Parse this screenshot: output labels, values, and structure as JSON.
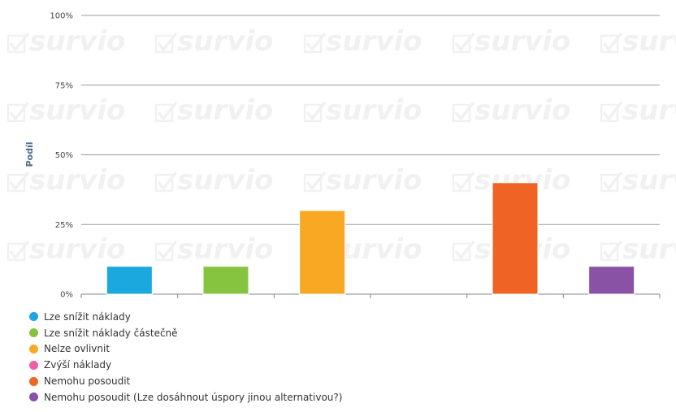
{
  "watermark": {
    "text": "survio"
  },
  "chart_data": {
    "type": "bar",
    "ylabel": "Podíl",
    "ylim": [
      0,
      100
    ],
    "yticks": [
      {
        "value": 0,
        "label": "0%"
      },
      {
        "value": 25,
        "label": "25%"
      },
      {
        "value": 50,
        "label": "50%"
      },
      {
        "value": 75,
        "label": "75%"
      },
      {
        "value": 100,
        "label": "100%"
      }
    ],
    "grid": true,
    "legend_position": "bottom-left",
    "categories": [
      "Lze snížit náklady",
      "Lze snížit náklady částečně",
      "Nelze ovlivnit",
      "Zvýší náklady",
      "Nemohu posoudit",
      "Nemohu posoudit (Lze dosáhnout úspory jinou alternativou?)"
    ],
    "values": [
      10,
      10,
      30,
      0,
      40,
      10
    ],
    "colors": [
      "#1ba8de",
      "#86c440",
      "#f9a824",
      "#ee5fa2",
      "#ef6424",
      "#8a52a4"
    ]
  }
}
